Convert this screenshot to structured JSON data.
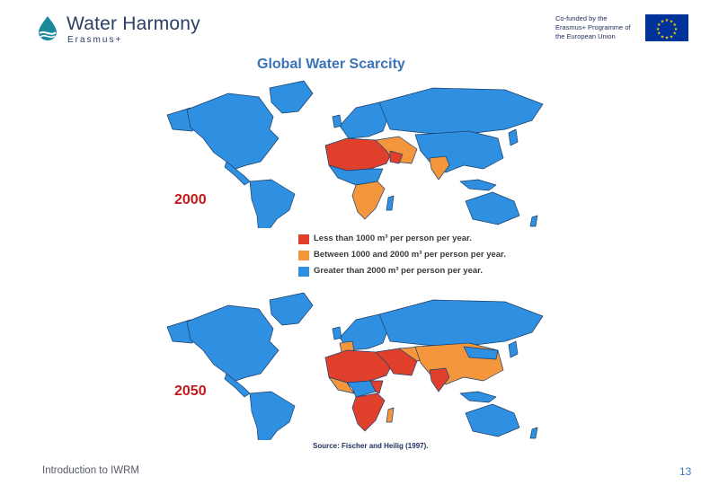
{
  "header": {
    "logo_title": "Water Harmony",
    "logo_sub": "Erasmus+",
    "eu_text": "Co-funded by the Erasmus+ Programme of the European Union"
  },
  "figure": {
    "title": "Global Water Scarcity",
    "panels": [
      {
        "year": "2000"
      },
      {
        "year": "2050"
      }
    ],
    "legend": [
      {
        "label": "Less than 1000 m³ per person per year.",
        "color": "#e0402b"
      },
      {
        "label": "Between 1000 and 2000 m³ per person per year.",
        "color": "#f4963c"
      },
      {
        "label": "Greater than 2000 m³ per person per year.",
        "color": "#2f8fe0"
      }
    ],
    "source": "Source: Fischer and Heilig (1997)."
  },
  "footer": {
    "course": "Introduction to IWRM",
    "page": "13"
  }
}
